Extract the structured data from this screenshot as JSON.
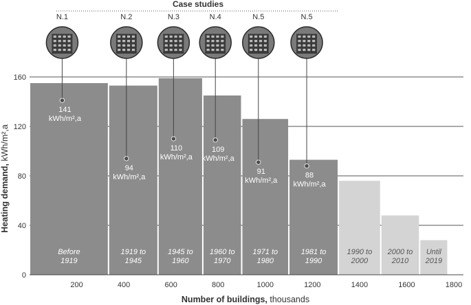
{
  "chart_data": {
    "type": "bar",
    "title": "Case studies",
    "xlabel_bold": "Number of buildings,",
    "xlabel_rest": " thousands",
    "ylabel_bold": "Heating demand,",
    "ylabel_rest": " kWh/m²,a",
    "xlim": [
      0,
      1800
    ],
    "ylim": [
      0,
      160
    ],
    "x_ticks": [
      200,
      400,
      600,
      800,
      1000,
      1200,
      1400,
      1600,
      1800
    ],
    "y_ticks": [
      0,
      40,
      80,
      120,
      160
    ],
    "colors": {
      "dark": "#8c8c8c",
      "light": "#d4d4d4",
      "grid": "#555555"
    },
    "bars": [
      {
        "period": [
          "Before",
          "1919"
        ],
        "x_start": 0,
        "x_end": 335,
        "value": 155,
        "shade": "dark",
        "case": "N.1",
        "demand": "141",
        "unit": "kWh/m²,a",
        "marker_y": 141
      },
      {
        "period": [
          "1919 to",
          "1945"
        ],
        "x_start": 335,
        "x_end": 545,
        "value": 153,
        "shade": "dark",
        "case": "N.2",
        "demand": "94",
        "unit": "kWh/m²,a",
        "marker_y": 94
      },
      {
        "period": [
          "1945 to",
          "1960"
        ],
        "x_start": 545,
        "x_end": 735,
        "value": 159,
        "shade": "dark",
        "case": "N.3",
        "demand": "110",
        "unit": "kWh/m²,a",
        "marker_y": 110
      },
      {
        "period": [
          "1960 to",
          "1970"
        ],
        "x_start": 735,
        "x_end": 900,
        "value": 145,
        "shade": "dark",
        "case": "N.4",
        "demand": "109",
        "unit": "kWh/m²,a",
        "marker_y": 109
      },
      {
        "period": [
          "1971 to",
          "1980"
        ],
        "x_start": 900,
        "x_end": 1100,
        "value": 126,
        "shade": "dark",
        "case": "N.5",
        "demand": "91",
        "unit": "kWh/m²,a",
        "marker_y": 91
      },
      {
        "period": [
          "1981 to",
          "1990"
        ],
        "x_start": 1100,
        "x_end": 1310,
        "value": 93,
        "shade": "dark",
        "case": "N.5",
        "demand": "88",
        "unit": "kWh/m²,a",
        "marker_y": 88
      },
      {
        "period": [
          "1990 to",
          "2000"
        ],
        "x_start": 1310,
        "x_end": 1490,
        "value": 76,
        "shade": "light"
      },
      {
        "period": [
          "2000 to",
          "2010"
        ],
        "x_start": 1490,
        "x_end": 1655,
        "value": 48,
        "shade": "light"
      },
      {
        "period": [
          "Until",
          "2019"
        ],
        "x_start": 1655,
        "x_end": 1775,
        "value": 28,
        "shade": "light"
      }
    ]
  }
}
